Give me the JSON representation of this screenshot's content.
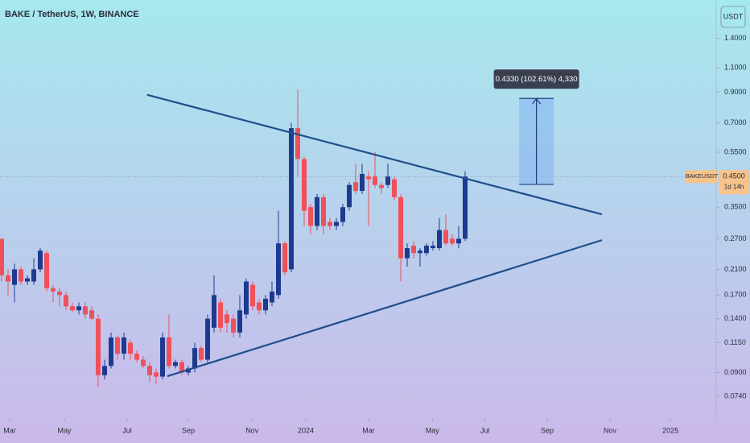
{
  "chart_data": {
    "type": "candlestick",
    "title": "BAKE / TetherUS, 1W, BINANCE",
    "y_unit": "USDT",
    "log_scale": true,
    "up_color": "#1e3a8f",
    "down_color": "#f0505a",
    "line_color": "#1f4e8c",
    "open": [
      0.27,
      0.2,
      0.185,
      0.21,
      0.19,
      0.19,
      0.21,
      0.24,
      0.18,
      0.175,
      0.17,
      0.155,
      0.15,
      0.155,
      0.15,
      0.14,
      0.088,
      0.095,
      0.12,
      0.105,
      0.115,
      0.105,
      0.1,
      0.095,
      0.09,
      0.087,
      0.12,
      0.095,
      0.098,
      0.09,
      0.093,
      0.11,
      0.1,
      0.13,
      0.16,
      0.145,
      0.14,
      0.125,
      0.145,
      0.185,
      0.16,
      0.15,
      0.16,
      0.17,
      0.26,
      0.21,
      0.67,
      0.52,
      0.35,
      0.3,
      0.38,
      0.31,
      0.3,
      0.31,
      0.35,
      0.43,
      0.4,
      0.45,
      0.45,
      0.42,
      0.42,
      0.44,
      0.38,
      0.23,
      0.255,
      0.24,
      0.24,
      0.25,
      0.25,
      0.29,
      0.27,
      0.26,
      0.27
    ],
    "high": [
      0.27,
      0.21,
      0.22,
      0.215,
      0.2,
      0.23,
      0.25,
      0.245,
      0.185,
      0.18,
      0.175,
      0.16,
      0.16,
      0.16,
      0.155,
      0.145,
      0.1,
      0.125,
      0.122,
      0.125,
      0.118,
      0.108,
      0.103,
      0.098,
      0.093,
      0.125,
      0.145,
      0.1,
      0.1,
      0.095,
      0.115,
      0.112,
      0.145,
      0.2,
      0.165,
      0.15,
      0.145,
      0.17,
      0.195,
      0.19,
      0.165,
      0.17,
      0.19,
      0.34,
      0.265,
      0.7,
      0.92,
      0.53,
      0.36,
      0.39,
      0.39,
      0.32,
      0.32,
      0.36,
      0.43,
      0.5,
      0.5,
      0.47,
      0.55,
      0.43,
      0.5,
      0.45,
      0.39,
      0.26,
      0.265,
      0.25,
      0.26,
      0.265,
      0.32,
      0.33,
      0.28,
      0.3,
      0.47
    ],
    "low": [
      0.19,
      0.17,
      0.16,
      0.185,
      0.185,
      0.185,
      0.205,
      0.175,
      0.16,
      0.155,
      0.15,
      0.148,
      0.145,
      0.14,
      0.138,
      0.08,
      0.085,
      0.093,
      0.1,
      0.1,
      0.1,
      0.098,
      0.093,
      0.083,
      0.082,
      0.085,
      0.093,
      0.093,
      0.088,
      0.088,
      0.09,
      0.098,
      0.098,
      0.125,
      0.125,
      0.125,
      0.12,
      0.12,
      0.14,
      0.15,
      0.145,
      0.145,
      0.155,
      0.165,
      0.2,
      0.205,
      0.45,
      0.3,
      0.28,
      0.29,
      0.28,
      0.29,
      0.29,
      0.3,
      0.34,
      0.39,
      0.39,
      0.3,
      0.41,
      0.39,
      0.41,
      0.37,
      0.19,
      0.215,
      0.23,
      0.215,
      0.235,
      0.245,
      0.245,
      0.255,
      0.255,
      0.25,
      0.265
    ],
    "close": [
      0.2,
      0.19,
      0.21,
      0.19,
      0.195,
      0.21,
      0.245,
      0.18,
      0.175,
      0.17,
      0.155,
      0.15,
      0.155,
      0.145,
      0.14,
      0.088,
      0.095,
      0.12,
      0.105,
      0.12,
      0.105,
      0.1,
      0.095,
      0.088,
      0.087,
      0.12,
      0.095,
      0.098,
      0.09,
      0.093,
      0.11,
      0.1,
      0.14,
      0.17,
      0.13,
      0.135,
      0.125,
      0.15,
      0.19,
      0.155,
      0.15,
      0.165,
      0.175,
      0.26,
      0.205,
      0.67,
      0.52,
      0.34,
      0.3,
      0.38,
      0.3,
      0.3,
      0.31,
      0.35,
      0.42,
      0.4,
      0.46,
      0.44,
      0.42,
      0.41,
      0.45,
      0.38,
      0.23,
      0.25,
      0.24,
      0.245,
      0.255,
      0.255,
      0.29,
      0.26,
      0.26,
      0.27,
      0.45
    ],
    "xlim": [
      -0.25,
      111
    ],
    "ylim": [
      0.0615,
      1.92
    ],
    "xticks": [
      {
        "value": 1.25,
        "label": "Mar"
      },
      {
        "value": 9.75,
        "label": "May"
      },
      {
        "value": 19.5,
        "label": "Jul"
      },
      {
        "value": 29,
        "label": "Sep"
      },
      {
        "value": 38.9,
        "label": "Nov"
      },
      {
        "value": 47.25,
        "label": "2024"
      },
      {
        "value": 57,
        "label": "Mar"
      },
      {
        "value": 66.9,
        "label": "May"
      },
      {
        "value": 75.1,
        "label": "Jul"
      },
      {
        "value": 84.75,
        "label": "Sep"
      },
      {
        "value": 94.5,
        "label": "Nov"
      },
      {
        "value": 103.9,
        "label": "2025"
      }
    ],
    "yticks": [
      {
        "value": 1.4,
        "label": "1.4000"
      },
      {
        "value": 1.1,
        "label": "1.1000"
      },
      {
        "value": 0.9,
        "label": "0.9000"
      },
      {
        "value": 0.7,
        "label": "0.7000"
      },
      {
        "value": 0.55,
        "label": "0.5500"
      },
      {
        "value": 0.35,
        "label": "0.3500"
      },
      {
        "value": 0.27,
        "label": "0.2700"
      },
      {
        "value": 0.21,
        "label": "0.2100"
      },
      {
        "value": 0.17,
        "label": "0.1700"
      },
      {
        "value": 0.14,
        "label": "0.1400"
      },
      {
        "value": 0.115,
        "label": "0.1150"
      },
      {
        "value": 0.09,
        "label": "0.0900"
      },
      {
        "value": 0.074,
        "label": "0.0740"
      }
    ],
    "trendlines": [
      {
        "x": [
          22.6,
          93.25
        ],
        "y": [
          0.881,
          0.33
        ]
      },
      {
        "x": [
          25.75,
          93.25
        ],
        "y": [
          0.0873,
          0.267
        ]
      }
    ],
    "measure": {
      "label": "0.4330 (102.61%) 4,330",
      "x": [
        80.4,
        85.75
      ],
      "from": 0.422,
      "to": 0.855
    },
    "symbol": "BAKEUSDT",
    "last_price": {
      "value": 0.45,
      "label": "0.4500"
    },
    "countdown": "1d 14h"
  }
}
